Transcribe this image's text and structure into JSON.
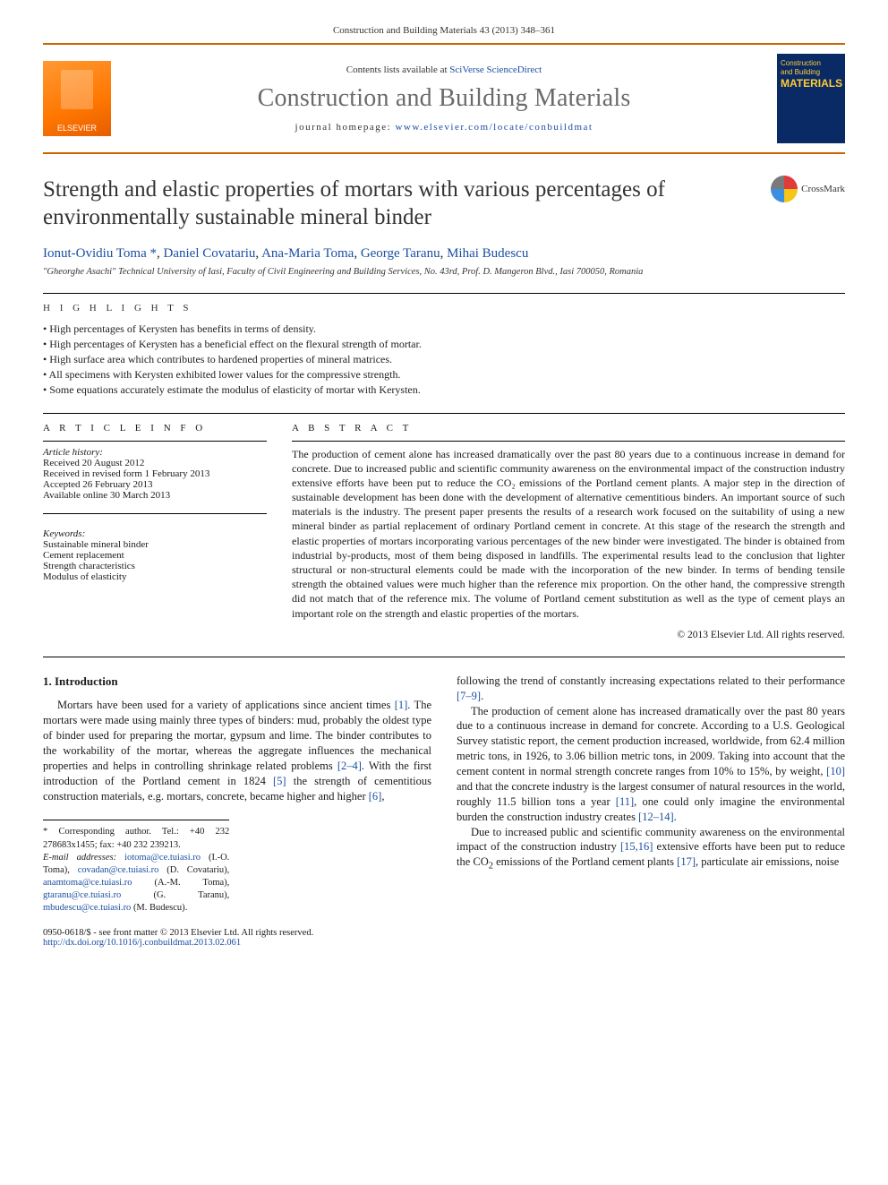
{
  "page_header": "Construction and Building Materials 43 (2013) 348–361",
  "masthead": {
    "publisher_logo_text": "ELSEVIER",
    "contents_prefix": "Contents lists available at ",
    "contents_link": "SciVerse ScienceDirect",
    "journal_name": "Construction and Building Materials",
    "homepage_prefix": "journal homepage: ",
    "homepage_link": "www.elsevier.com/locate/conbuildmat",
    "cover_line1": "Construction",
    "cover_line2": "and Building",
    "cover_line3": "MATERIALS"
  },
  "title": "Strength and elastic properties of mortars with various percentages of environmentally sustainable mineral binder",
  "crossmark_label": "CrossMark",
  "authors_html": "Ionut-Ovidiu Toma *, Daniel Covatariu, Ana-Maria Toma, George Taranu, Mihai Budescu",
  "affiliation": "\"Gheorghe Asachi\" Technical University of Iasi, Faculty of Civil Engineering and Building Services, No. 43rd, Prof. D. Mangeron Blvd., Iasi 700050, Romania",
  "highlights_label": "h i g h l i g h t s",
  "highlights": [
    "High percentages of Kerysten has benefits in terms of density.",
    "High percentages of Kerysten has a beneficial effect on the flexural strength of mortar.",
    "High surface area which contributes to hardened properties of mineral matrices.",
    "All specimens with Kerysten exhibited lower values for the compressive strength.",
    "Some equations accurately estimate the modulus of elasticity of mortar with Kerysten."
  ],
  "article_info": {
    "label": "a r t i c l e   i n f o",
    "history_head": "Article history:",
    "history": [
      "Received 20 August 2012",
      "Received in revised form 1 February 2013",
      "Accepted 26 February 2013",
      "Available online 30 March 2013"
    ],
    "keywords_head": "Keywords:",
    "keywords": [
      "Sustainable mineral binder",
      "Cement replacement",
      "Strength characteristics",
      "Modulus of elasticity"
    ]
  },
  "abstract": {
    "label": "a b s t r a c t",
    "text": "The production of cement alone has increased dramatically over the past 80 years due to a continuous increase in demand for concrete. Due to increased public and scientific community awareness on the environmental impact of the construction industry extensive efforts have been put to reduce the CO₂ emissions of the Portland cement plants. A major step in the direction of sustainable development has been done with the development of alternative cementitious binders. An important source of such materials is the industry. The present paper presents the results of a research work focused on the suitability of using a new mineral binder as partial replacement of ordinary Portland cement in concrete. At this stage of the research the strength and elastic properties of mortars incorporating various percentages of the new binder were investigated. The binder is obtained from industrial by-products, most of them being disposed in landfills. The experimental results lead to the conclusion that lighter structural or non-structural elements could be made with the incorporation of the new binder. In terms of bending tensile strength the obtained values were much higher than the reference mix proportion. On the other hand, the compressive strength did not match that of the reference mix. The volume of Portland cement substitution as well as the type of cement plays an important role on the strength and elastic properties of the mortars.",
    "copyright": "© 2013 Elsevier Ltd. All rights reserved."
  },
  "body": {
    "heading": "1. Introduction",
    "col1_p1": "Mortars have been used for a variety of applications since ancient times [1]. The mortars were made using mainly three types of binders: mud, probably the oldest type of binder used for preparing the mortar, gypsum and lime. The binder contributes to the workability of the mortar, whereas the aggregate influences the mechanical properties and helps in controlling shrinkage related problems [2–4]. With the first introduction of the Portland cement in 1824 [5] the strength of cementitious construction materials, e.g. mortars, concrete, became higher and higher [6],",
    "col2_p1": "following the trend of constantly increasing expectations related to their performance [7–9].",
    "col2_p2": "The production of cement alone has increased dramatically over the past 80 years due to a continuous increase in demand for concrete. According to a U.S. Geological Survey statistic report, the cement production increased, worldwide, from 62.4 million metric tons, in 1926, to 3.06 billion metric tons, in 2009. Taking into account that the cement content in normal strength concrete ranges from 10% to 15%, by weight, [10] and that the concrete industry is the largest consumer of natural resources in the world, roughly 11.5 billion tons a year [11], one could only imagine the environmental burden the construction industry creates [12–14].",
    "col2_p3": "Due to increased public and scientific community awareness on the environmental impact of the construction industry [15,16] extensive efforts have been put to reduce the CO₂ emissions of the Portland cement plants [17], particulate air emissions, noise"
  },
  "footnotes": {
    "corresponding": "* Corresponding author. Tel.: +40 232 278683x1455; fax: +40 232 239213.",
    "emails_label": "E-mail addresses: ",
    "emails": [
      {
        "email": "iotoma@ce.tuiasi.ro",
        "who": "(I.-O. Toma)"
      },
      {
        "email": "covadan@ce.tuiasi.ro",
        "who": "(D. Covatariu)"
      },
      {
        "email": "anamtoma@ce.tuiasi.ro",
        "who": "(A.-M. Toma)"
      },
      {
        "email": "gtaranu@ce.tuiasi.ro",
        "who": "(G. Taranu)"
      },
      {
        "email": "mbudescu@ce.tuiasi.ro",
        "who": "(M. Budescu)"
      }
    ]
  },
  "bottom": {
    "issn_line": "0950-0618/$ - see front matter © 2013 Elsevier Ltd. All rights reserved.",
    "doi": "http://dx.doi.org/10.1016/j.conbuildmat.2013.02.061"
  },
  "colors": {
    "rule": "#cc6600",
    "link": "#1a4fa3",
    "elsevier_grad_a": "#ff9933",
    "elsevier_grad_b": "#e65c00",
    "cover_bg": "#0a2a66",
    "cover_accent": "#ffcc33"
  }
}
